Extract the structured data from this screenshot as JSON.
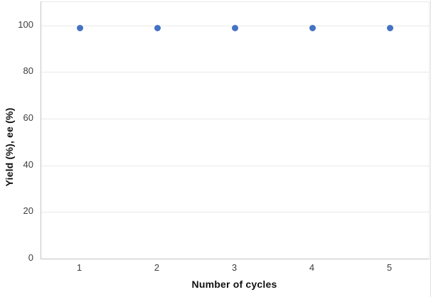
{
  "chart_data": {
    "type": "scatter",
    "title": "",
    "xlabel": "Number of cycles",
    "ylabel": "Yield (%), ee (%)",
    "x": [
      1,
      2,
      3,
      4,
      5
    ],
    "series": [
      {
        "name": "Yield (%), ee (%)",
        "values": [
          99,
          99,
          99,
          99,
          99
        ],
        "color": "#4472C4"
      }
    ],
    "x_tick_labels": [
      "1",
      "2",
      "3",
      "4",
      "5"
    ],
    "y_ticks": [
      0,
      20,
      40,
      60,
      80,
      100
    ],
    "ylim": [
      0,
      110
    ],
    "grid": "horizontal-only",
    "legend_position": "none",
    "marker_shape": "circle",
    "marker_size_px": 9
  },
  "colors": {
    "marker": "#4472C4",
    "gridline": "#e9e9e9",
    "axis_line": "#c3c3c3",
    "tick_text": "#3d3d3d",
    "title_text": "#111111",
    "background": "#ffffff"
  }
}
